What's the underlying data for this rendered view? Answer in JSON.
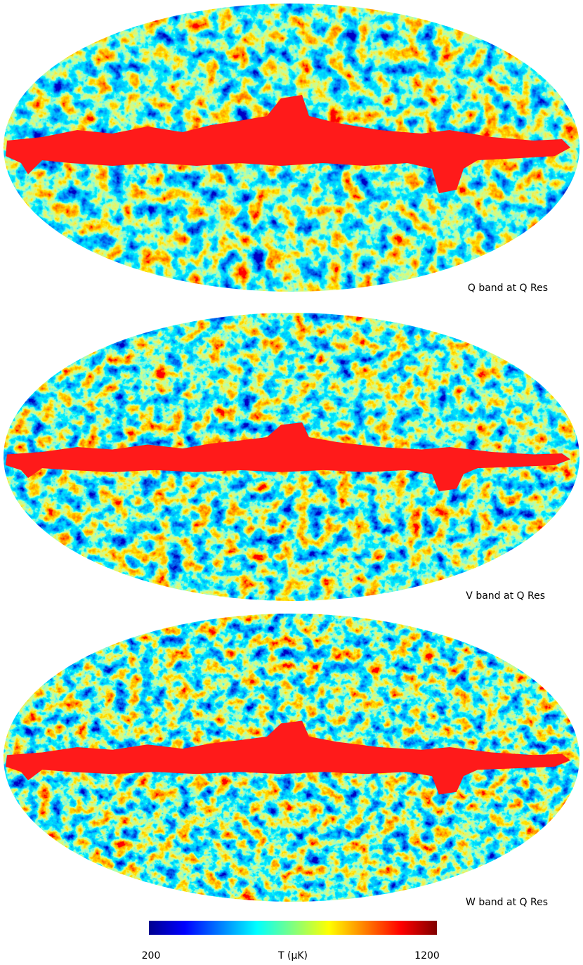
{
  "maps": [
    {
      "label": "Q band at Q Res"
    },
    {
      "label": "V band at Q Res"
    },
    {
      "label": "W band at Q Res"
    }
  ],
  "colorbar": {
    "min_label": "200",
    "axis_label": "T (μK)",
    "max_label": "1200"
  }
}
